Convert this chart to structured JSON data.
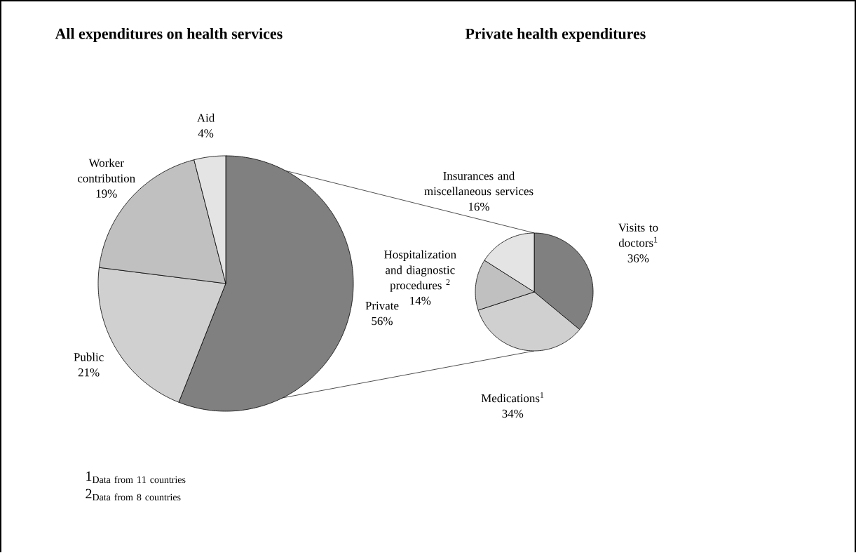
{
  "chart_data": [
    {
      "type": "pie",
      "title": "All expenditures on health services",
      "categories": [
        "Private",
        "Public",
        "Worker contribution",
        "Aid"
      ],
      "values": [
        56,
        21,
        19,
        4
      ],
      "colors": [
        "#808080",
        "#d0d0d0",
        "#c0c0c0",
        "#e4e4e4"
      ],
      "value_labels": [
        "56%",
        "21%",
        "19%",
        "4%"
      ],
      "annotations": [
        "\\mathrm{1}_{\\mathrm{Data\\ from\\ 11\\ countries}}",
        "\\mathrm{2}_{\\mathrm{Data\\ from\\ 8\\ countries}}"
      ]
    },
    {
      "type": "pie",
      "title": "Private health expenditures",
      "categories": [
        "Visits to doctors$^{1}$",
        "Medications$^{1}$",
        "Hospitalization and diagnostic procedures $^{2}$",
        "Insurances and miscellaneous services"
      ],
      "values": [
        36,
        34,
        14,
        16
      ],
      "colors": [
        "#808080",
        "#d0d0d0",
        "#c0c0c0",
        "#e4e4e4"
      ],
      "value_labels": [
        "36%",
        "34%",
        "14%",
        "16%"
      ]
    }
  ]
}
